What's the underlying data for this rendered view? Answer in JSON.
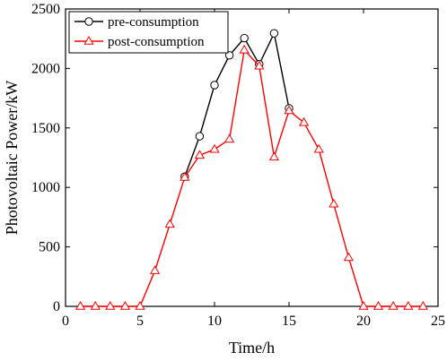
{
  "chart_data": {
    "type": "line",
    "xlabel": "Time/h",
    "ylabel": "Photovoltaic Power/kW",
    "xlim": [
      0,
      25
    ],
    "ylim": [
      0,
      2500
    ],
    "xticks": [
      0,
      5,
      10,
      15,
      20,
      25
    ],
    "yticks": [
      0,
      500,
      1000,
      1500,
      2000,
      2500
    ],
    "grid": false,
    "legend_position": "top-left",
    "series": [
      {
        "name": "pre-consumption",
        "color": "#000000",
        "marker": "circle",
        "x": [
          8,
          9,
          10,
          11,
          12,
          13,
          14,
          15
        ],
        "y": [
          1090,
          1430,
          1860,
          2110,
          2255,
          2035,
          2295,
          1665
        ]
      },
      {
        "name": "post-consumption",
        "color": "#ff0000",
        "marker": "triangle",
        "x": [
          1,
          2,
          3,
          4,
          5,
          6,
          7,
          8,
          9,
          10,
          11,
          12,
          13,
          14,
          15,
          16,
          17,
          18,
          19,
          20,
          21,
          22,
          23,
          24
        ],
        "y": [
          0,
          0,
          0,
          0,
          0,
          300,
          690,
          1085,
          1270,
          1320,
          1405,
          2155,
          2020,
          1255,
          1645,
          1545,
          1320,
          860,
          410,
          0,
          0,
          0,
          0,
          0
        ]
      }
    ]
  }
}
